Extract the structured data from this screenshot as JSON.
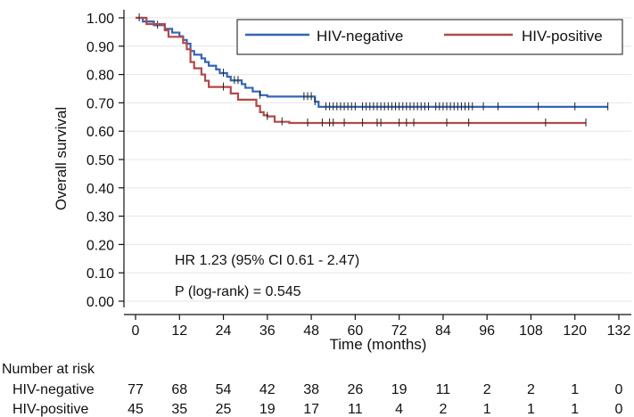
{
  "chart_data": {
    "type": "line",
    "subtype": "kaplan-meier",
    "xlabel": "Time (months)",
    "ylabel": "Overall survival",
    "xlim": [
      0,
      132
    ],
    "ylim": [
      0,
      1
    ],
    "x_ticks": [
      0,
      12,
      24,
      36,
      48,
      60,
      72,
      84,
      96,
      108,
      120,
      132
    ],
    "y_ticks": [
      "0.00",
      "0.10",
      "0.20",
      "0.30",
      "0.40",
      "0.50",
      "0.60",
      "0.70",
      "0.80",
      "0.90",
      "1.00"
    ],
    "legend_position": "top-right",
    "annotations": [
      "HR 1.23 (95% CI 0.61 - 2.47)",
      "P (log-rank) = 0.545"
    ],
    "series": [
      {
        "name": "HIV-negative",
        "color": "#3465b4",
        "steps": [
          [
            0,
            1.0
          ],
          [
            2,
            0.987
          ],
          [
            5,
            0.974
          ],
          [
            8,
            0.961
          ],
          [
            10,
            0.948
          ],
          [
            12,
            0.935
          ],
          [
            13,
            0.922
          ],
          [
            14,
            0.909
          ],
          [
            15,
            0.883
          ],
          [
            16,
            0.87
          ],
          [
            18,
            0.857
          ],
          [
            19,
            0.844
          ],
          [
            20,
            0.831
          ],
          [
            22,
            0.818
          ],
          [
            23,
            0.805
          ],
          [
            25,
            0.792
          ],
          [
            26,
            0.779
          ],
          [
            29,
            0.766
          ],
          [
            30,
            0.753
          ],
          [
            32,
            0.74
          ],
          [
            34,
            0.727
          ],
          [
            36,
            0.722
          ],
          [
            49,
            0.704
          ],
          [
            50,
            0.686
          ],
          [
            129,
            0.686
          ]
        ],
        "censor_times": [
          6,
          24,
          27,
          28,
          34,
          46,
          47,
          48,
          49,
          52,
          53,
          54,
          55,
          56,
          57,
          58,
          59,
          60,
          62,
          63,
          64,
          65,
          66,
          67,
          68,
          69,
          70,
          71,
          72,
          73,
          74,
          75,
          76,
          77,
          78,
          79,
          80,
          82,
          83,
          84,
          85,
          86,
          87,
          88,
          89,
          90,
          91,
          92,
          95,
          99,
          110,
          120,
          129
        ]
      },
      {
        "name": "HIV-positive",
        "color": "#b04a4a",
        "steps": [
          [
            0,
            1.0
          ],
          [
            3,
            0.978
          ],
          [
            8,
            0.956
          ],
          [
            9,
            0.933
          ],
          [
            13,
            0.911
          ],
          [
            14,
            0.889
          ],
          [
            15,
            0.844
          ],
          [
            16,
            0.822
          ],
          [
            18,
            0.8
          ],
          [
            19,
            0.778
          ],
          [
            20,
            0.756
          ],
          [
            26,
            0.733
          ],
          [
            28,
            0.711
          ],
          [
            33,
            0.689
          ],
          [
            34,
            0.667
          ],
          [
            35,
            0.656
          ],
          [
            36,
            0.652
          ],
          [
            38,
            0.633
          ],
          [
            42,
            0.629
          ],
          [
            123,
            0.629
          ]
        ],
        "censor_times": [
          1,
          24,
          36,
          40,
          47,
          51,
          53,
          54,
          57,
          62,
          66,
          67,
          72,
          74,
          76,
          85,
          91,
          112,
          123
        ]
      }
    ],
    "risk_table": {
      "title": "Number at risk",
      "rows": [
        {
          "label": "HIV-negative",
          "values": [
            77,
            68,
            54,
            42,
            38,
            26,
            19,
            11,
            2,
            2,
            1,
            0
          ]
        },
        {
          "label": "HIV-positive",
          "values": [
            45,
            35,
            25,
            19,
            17,
            11,
            4,
            2,
            1,
            1,
            1,
            0
          ]
        }
      ]
    }
  }
}
